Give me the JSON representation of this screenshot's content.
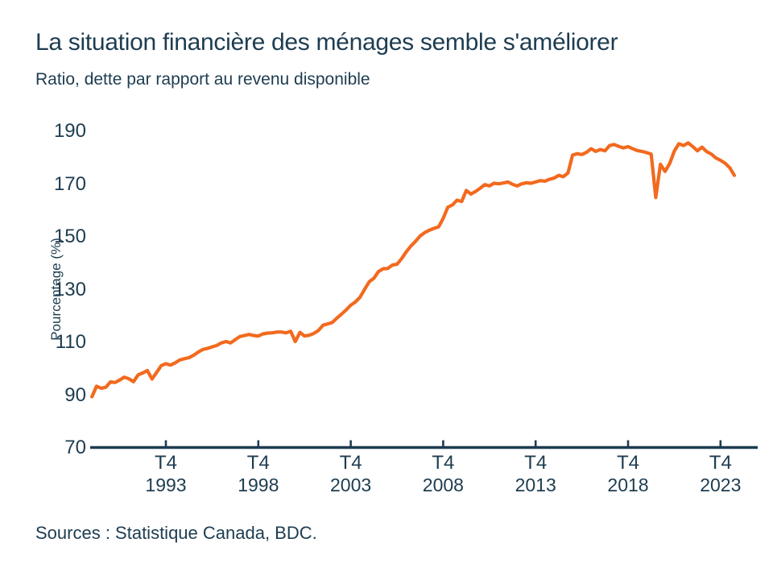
{
  "colors": {
    "navy": "#1d3c50",
    "orange": "#f26a1e",
    "background": "#ffffff"
  },
  "header": {
    "title": "La situation financière des ménages semble s'améliorer",
    "subtitle": "Ratio, dette par rapport au revenu disponible"
  },
  "footer": {
    "source": "Sources : Statistique Canada, BDC."
  },
  "chart_data": {
    "type": "line",
    "title": "La situation financière des ménages semble s'améliorer",
    "subtitle": "Ratio, dette par rapport au revenu disponible",
    "xlabel": "",
    "ylabel": "Pourcentage (%)",
    "ylim": [
      70,
      190
    ],
    "y_ticks": [
      190,
      170,
      150,
      130,
      110,
      90,
      70
    ],
    "x_ticks": [
      {
        "top": "T4",
        "year": "1993"
      },
      {
        "top": "T4",
        "year": "1998"
      },
      {
        "top": "T4",
        "year": "2003"
      },
      {
        "top": "T4",
        "year": "2008"
      },
      {
        "top": "T4",
        "year": "2013"
      },
      {
        "top": "T4",
        "year": "2018"
      },
      {
        "top": "T4",
        "year": "2023"
      }
    ],
    "grid": false,
    "legend": "none",
    "frequency": "quarterly",
    "start": {
      "year": 1989,
      "quarter": 4
    },
    "end": {
      "year": 2024,
      "quarter": 3
    },
    "line_color": "#f26a1e",
    "axis_color": "#1d3c50",
    "values": [
      89.4,
      93.4,
      92.6,
      93.0,
      95.0,
      94.8,
      95.7,
      96.8,
      96.2,
      95.1,
      97.7,
      98.4,
      99.3,
      96.1,
      98.6,
      101.2,
      101.9,
      101.4,
      102.2,
      103.3,
      103.8,
      104.2,
      105.1,
      106.3,
      107.3,
      107.7,
      108.3,
      108.8,
      109.8,
      110.3,
      109.8,
      111.0,
      112.2,
      112.6,
      113.0,
      112.6,
      112.4,
      113.2,
      113.5,
      113.6,
      113.9,
      113.9,
      113.6,
      114.2,
      110.3,
      113.8,
      112.4,
      112.7,
      113.4,
      114.5,
      116.5,
      117.0,
      117.5,
      119.2,
      120.7,
      122.3,
      124.1,
      125.3,
      127.1,
      130.1,
      133.0,
      134.3,
      136.8,
      137.9,
      138.0,
      139.3,
      139.6,
      141.7,
      144.3,
      146.5,
      148.3,
      150.3,
      151.6,
      152.5,
      153.2,
      153.8,
      157.0,
      161.2,
      162.1,
      163.9,
      163.4,
      167.6,
      166.2,
      167.2,
      168.4,
      169.8,
      169.3,
      170.3,
      170.1,
      170.4,
      170.8,
      169.9,
      169.3,
      170.1,
      170.5,
      170.3,
      170.8,
      171.3,
      171.1,
      171.8,
      172.3,
      173.3,
      172.8,
      174.2,
      181.0,
      181.5,
      181.2,
      182.0,
      183.4,
      182.4,
      183.1,
      182.6,
      184.6,
      185.0,
      184.3,
      183.7,
      184.2,
      183.4,
      182.7,
      182.4,
      181.9,
      181.4,
      164.9,
      177.5,
      174.8,
      177.8,
      182.5,
      185.3,
      184.6,
      185.6,
      184.2,
      182.6,
      184.0,
      182.3,
      181.4,
      179.9,
      179.0,
      177.9,
      176.2,
      173.3
    ]
  }
}
